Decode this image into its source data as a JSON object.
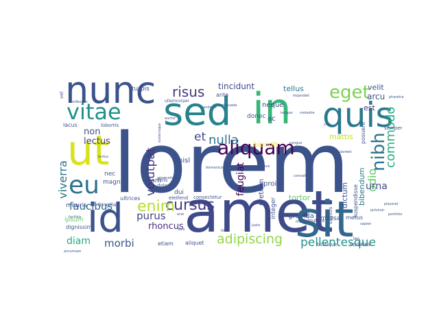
{
  "word_cloud": {
    "words": [
      {
        "text": "lorem",
        "color": "#3b528b"
      },
      {
        "text": "amet",
        "color": "#3e4a89"
      },
      {
        "text": "sit",
        "color": "#31688e"
      },
      {
        "text": "sed",
        "color": "#26828e"
      },
      {
        "text": "in",
        "color": "#35b779"
      },
      {
        "text": "nunc",
        "color": "#3b528b"
      },
      {
        "text": "quis",
        "color": "#2a788e"
      },
      {
        "text": "vitae",
        "color": "#21918c"
      },
      {
        "text": "ut",
        "color": "#d8e219"
      },
      {
        "text": "id",
        "color": "#3b528b"
      },
      {
        "text": "eu",
        "color": "#2c728e"
      },
      {
        "text": "aliquam",
        "color": "#440154"
      },
      {
        "text": "eget",
        "color": "#7ad151"
      },
      {
        "text": "nibh",
        "color": "#2c728e"
      },
      {
        "text": "risus",
        "color": "#46327e"
      },
      {
        "text": "cursus",
        "color": "#443a83"
      },
      {
        "text": "enim",
        "color": "#b5de2b"
      },
      {
        "text": "adipiscing",
        "color": "#90d743"
      },
      {
        "text": "pellentesque",
        "color": "#21918c"
      },
      {
        "text": "commodo",
        "color": "#28ae80"
      },
      {
        "text": "nulla",
        "color": "#2c728e"
      },
      {
        "text": "et",
        "color": "#3e4a89"
      },
      {
        "text": "volutpat",
        "color": "#46327e"
      },
      {
        "text": "odio",
        "color": "#5ec962"
      },
      {
        "text": "viverra",
        "color": "#2c728e"
      },
      {
        "text": "faucibus",
        "color": "#31688e"
      },
      {
        "text": "purus",
        "color": "#404387"
      },
      {
        "text": "morbi",
        "color": "#3b528b"
      },
      {
        "text": "diam",
        "color": "#22a884"
      },
      {
        "text": "urna",
        "color": "#3e4a89"
      },
      {
        "text": "lectus",
        "color": "#443a83"
      },
      {
        "text": "non",
        "color": "#3b528b"
      },
      {
        "text": "feugiat",
        "color": "#440154"
      },
      {
        "text": "rhoncus",
        "color": "#472d7b"
      },
      {
        "text": "tincidunt",
        "color": "#3e4a89"
      },
      {
        "text": "tellus",
        "color": "#2a788e"
      },
      {
        "text": "velit",
        "color": "#3b528b"
      },
      {
        "text": "arcu",
        "color": "#3b528b"
      },
      {
        "text": "est",
        "color": "#46327e"
      },
      {
        "text": "mattis",
        "color": "#c2df23"
      },
      {
        "text": "bibendum",
        "color": "#2a788e"
      },
      {
        "text": "dictum",
        "color": "#3b528b"
      },
      {
        "text": "tortor",
        "color": "#5ec962"
      },
      {
        "text": "gravida",
        "color": "#3b528b"
      },
      {
        "text": "pretium",
        "color": "#3e4a89"
      },
      {
        "text": "proin",
        "color": "#3e4a89"
      },
      {
        "text": "integer",
        "color": "#3b528b"
      },
      {
        "text": "neque",
        "color": "#3e4a89"
      },
      {
        "text": "donec",
        "color": "#3b528b"
      },
      {
        "text": "ac",
        "color": "#3e4a89"
      },
      {
        "text": "blandit",
        "color": "#fde725"
      },
      {
        "text": "nisl",
        "color": "#3e4a89"
      },
      {
        "text": "egestas",
        "color": "#3b528b"
      },
      {
        "text": "magna",
        "color": "#3b528b"
      },
      {
        "text": "nec",
        "color": "#3b528b"
      },
      {
        "text": "quam",
        "color": "#3b528b"
      },
      {
        "text": "mauris",
        "color": "#3b528b"
      },
      {
        "text": "ipsum",
        "color": "#5ec962"
      },
      {
        "text": "dignissim",
        "color": "#3b528b"
      },
      {
        "text": "etiam",
        "color": "#3b528b"
      },
      {
        "text": "aliquet",
        "color": "#3b528b"
      },
      {
        "text": "ultrices",
        "color": "#3b528b"
      },
      {
        "text": "fringilla",
        "color": "#3b528b"
      },
      {
        "text": "eleifend",
        "color": "#3b528b"
      },
      {
        "text": "consectetur",
        "color": "#3b528b"
      },
      {
        "text": "dui",
        "color": "#3b528b"
      },
      {
        "text": "dolor",
        "color": "#3b528b"
      },
      {
        "text": "felis",
        "color": "#3b528b"
      },
      {
        "text": "massa",
        "color": "#3b528b"
      },
      {
        "text": "vulputate",
        "color": "#3b528b"
      },
      {
        "text": "metus",
        "color": "#3b528b"
      },
      {
        "text": "suspendisse",
        "color": "#3b528b"
      },
      {
        "text": "sodales",
        "color": "#3b528b"
      },
      {
        "text": "tristique",
        "color": "#3b528b"
      },
      {
        "text": "posuere",
        "color": "#3b528b"
      },
      {
        "text": "semper",
        "color": "#3b528b"
      },
      {
        "text": "lacus",
        "color": "#3b528b"
      },
      {
        "text": "lobortis",
        "color": "#3b528b"
      },
      {
        "text": "turpis",
        "color": "#3b528b"
      },
      {
        "text": "ante",
        "color": "#3b528b"
      },
      {
        "text": "vel",
        "color": "#3b528b"
      },
      {
        "text": "sagittis",
        "color": "#3b528b"
      },
      {
        "text": "mollis",
        "color": "#3b528b"
      },
      {
        "text": "ullamcorper",
        "color": "#3b528b"
      },
      {
        "text": "malesuada",
        "color": "#3b528b"
      },
      {
        "text": "molestie",
        "color": "#3b528b"
      },
      {
        "text": "venenatis",
        "color": "#3b528b"
      },
      {
        "text": "scelerisque",
        "color": "#3b528b"
      },
      {
        "text": "imperdiet",
        "color": "#3b528b"
      },
      {
        "text": "facilisis",
        "color": "#3b528b"
      },
      {
        "text": "placerat",
        "color": "#3b528b"
      },
      {
        "text": "porttitor",
        "color": "#3b528b"
      },
      {
        "text": "vestibulum",
        "color": "#3b528b"
      },
      {
        "text": "convallis",
        "color": "#3b528b"
      },
      {
        "text": "elementum",
        "color": "#3b528b"
      },
      {
        "text": "fermentum",
        "color": "#3b528b"
      },
      {
        "text": "accumsan",
        "color": "#3b528b"
      },
      {
        "text": "pulvinar",
        "color": "#3b528b"
      },
      {
        "text": "pharetra",
        "color": "#3b528b"
      },
      {
        "text": "hendrerit",
        "color": "#3b528b"
      },
      {
        "text": "lectus",
        "color": "#3b528b"
      },
      {
        "text": "orci",
        "color": "#3b528b"
      },
      {
        "text": "erat",
        "color": "#3b528b"
      },
      {
        "text": "leo",
        "color": "#3b528b"
      },
      {
        "text": "duis",
        "color": "#3b528b"
      },
      {
        "text": "justo",
        "color": "#3b528b"
      },
      {
        "text": "fusce",
        "color": "#3b528b"
      },
      {
        "text": "tempor",
        "color": "#3b528b"
      },
      {
        "text": "sapien",
        "color": "#3b528b"
      },
      {
        "text": "laoreet",
        "color": "#3b528b"
      },
      {
        "text": "congue",
        "color": "#3b528b"
      },
      {
        "text": "cras",
        "color": "#3b528b"
      },
      {
        "text": "auctor",
        "color": "#3b528b"
      }
    ]
  }
}
